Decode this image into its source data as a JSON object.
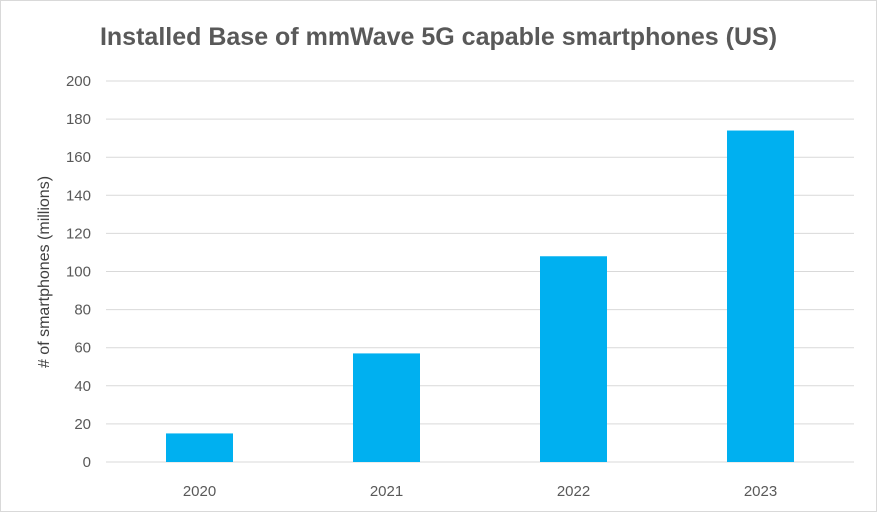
{
  "chart_data": {
    "type": "bar",
    "title": "Installed Base of mmWave 5G capable smartphones (US)",
    "xlabel": "",
    "ylabel": "# of smartphones (millions)",
    "categories": [
      "2020",
      "2021",
      "2022",
      "2023"
    ],
    "values": [
      15,
      57,
      108,
      174
    ],
    "ylim": [
      0,
      200
    ],
    "yticks": [
      0,
      20,
      40,
      60,
      80,
      100,
      120,
      140,
      160,
      180,
      200
    ],
    "grid": true,
    "legend": "none",
    "bar_color": "#00b0f0",
    "grid_color": "#d9d9d9"
  }
}
